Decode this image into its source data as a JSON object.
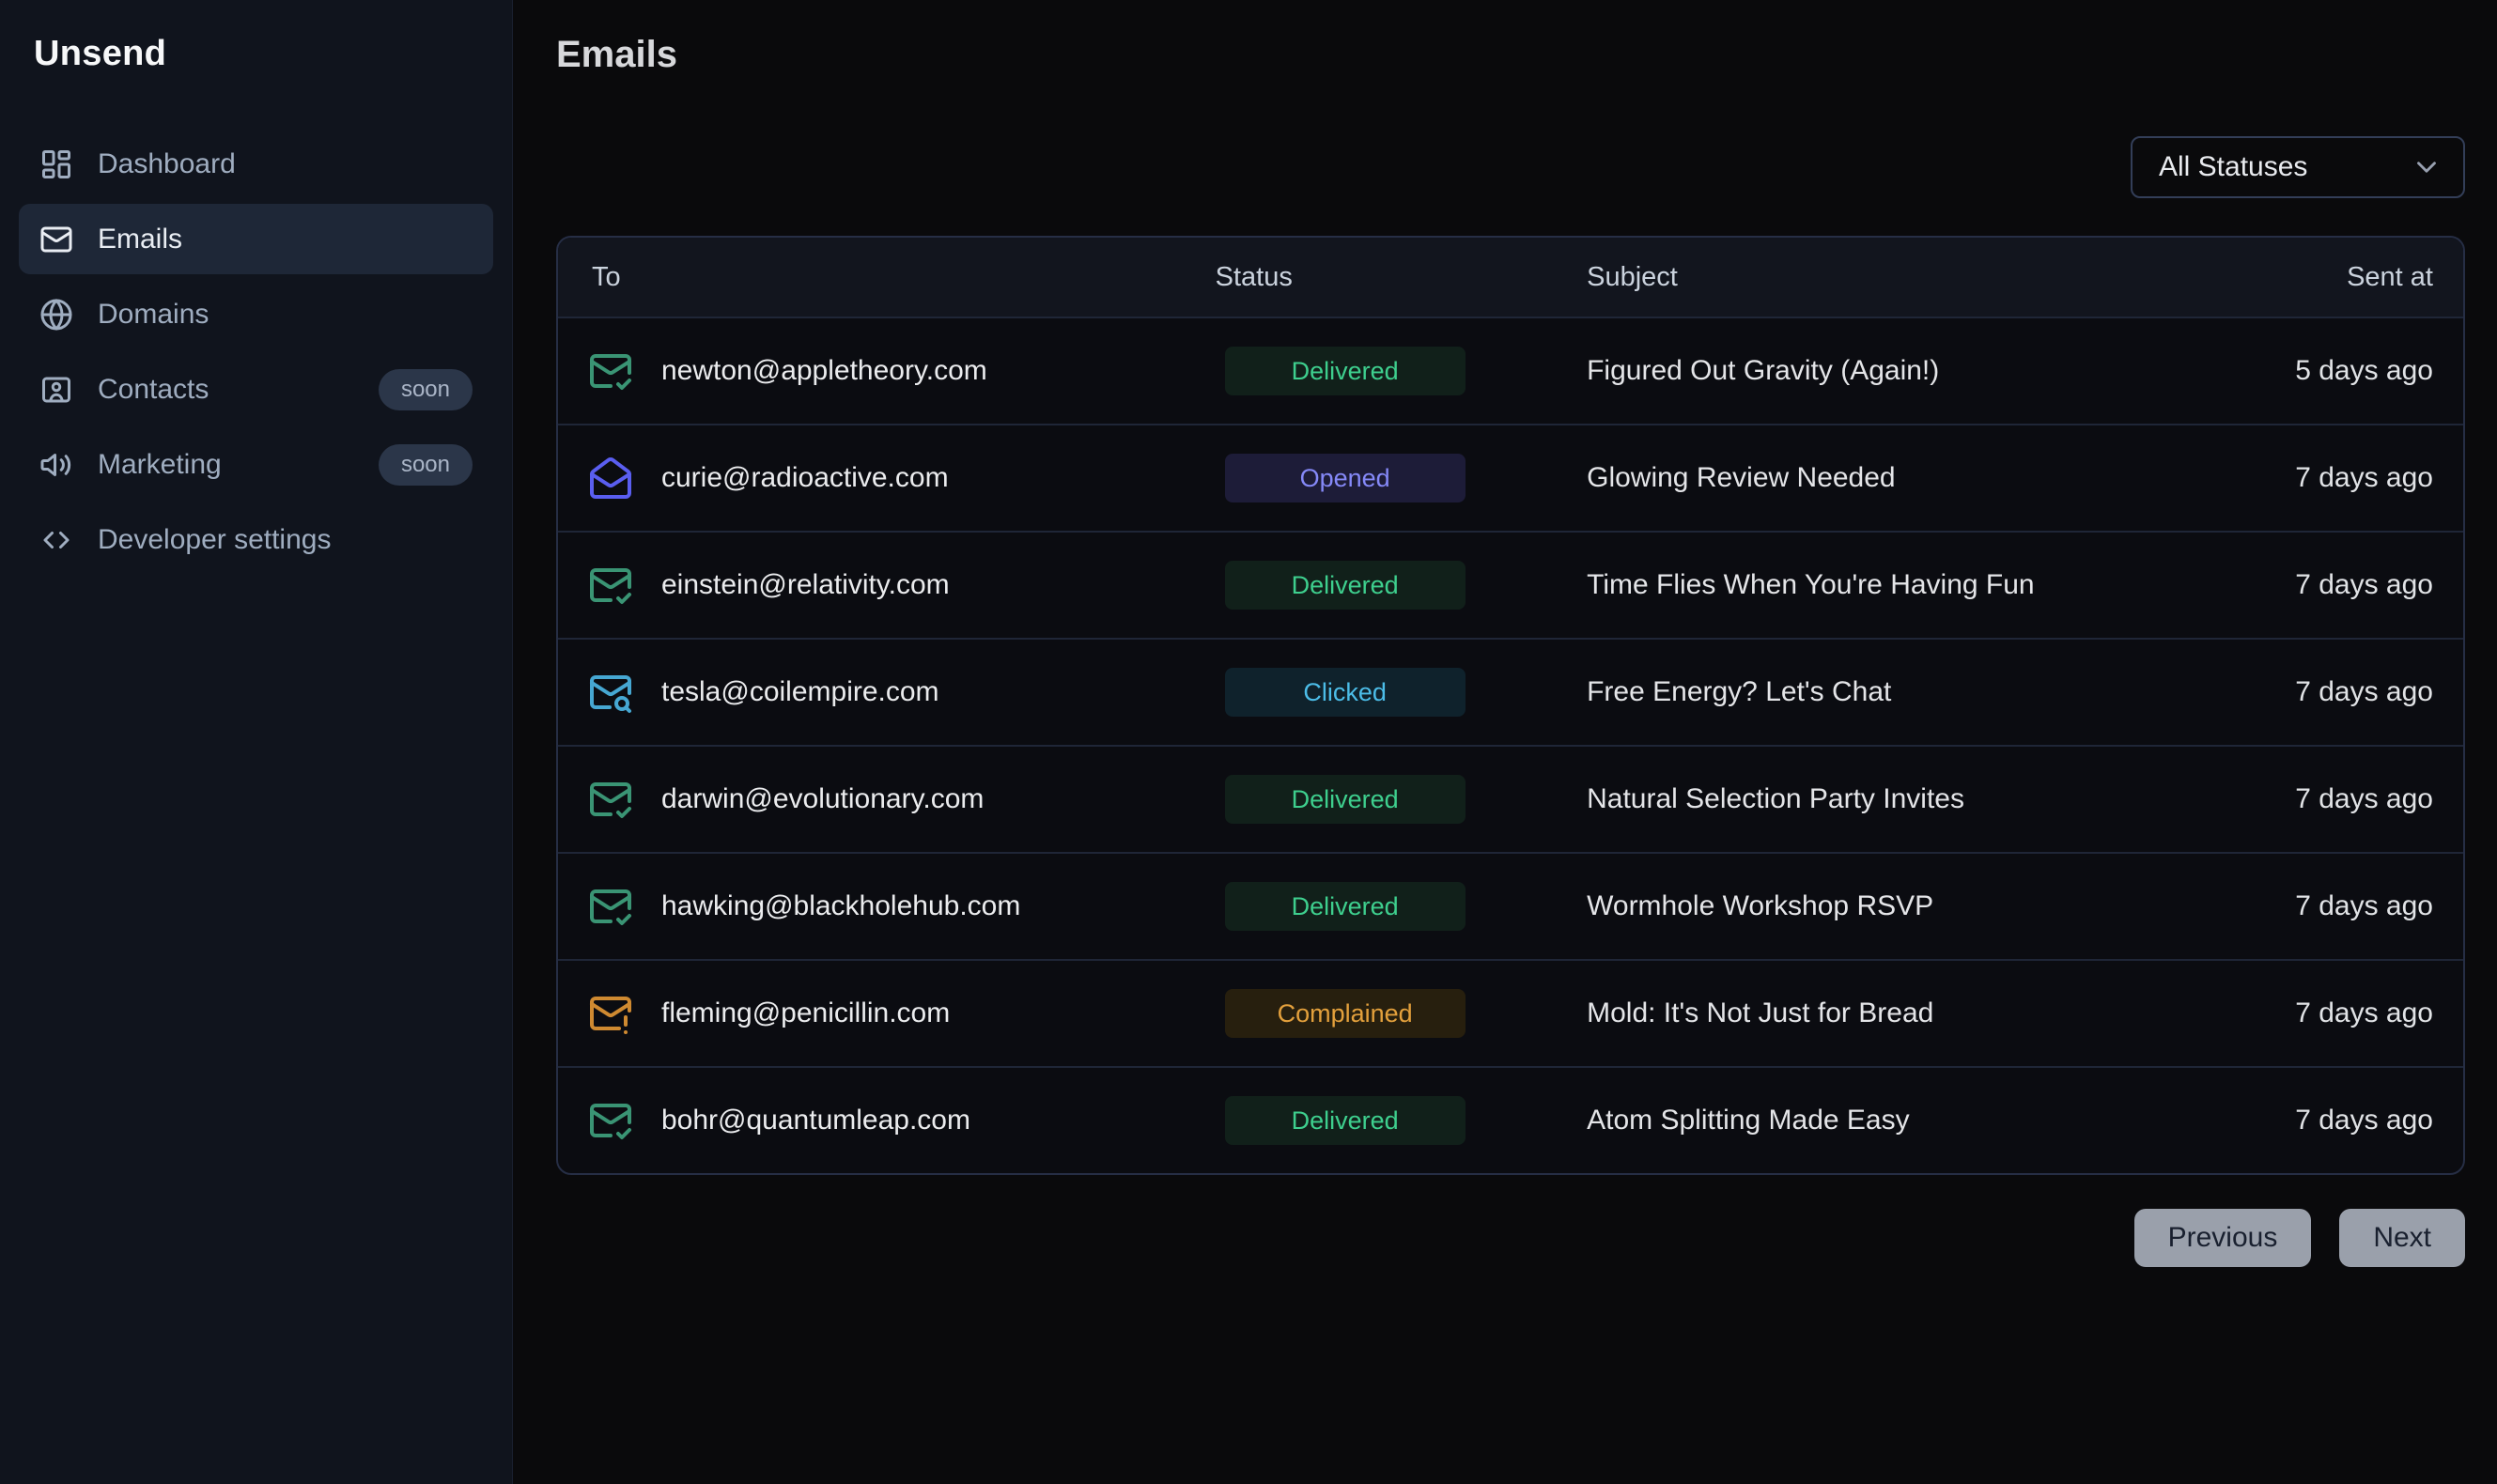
{
  "app": {
    "name": "Unsend"
  },
  "sidebar": {
    "items": [
      {
        "label": "Dashboard",
        "icon": "dashboard-icon",
        "active": false,
        "badge": null
      },
      {
        "label": "Emails",
        "icon": "mail-icon",
        "active": true,
        "badge": null
      },
      {
        "label": "Domains",
        "icon": "globe-icon",
        "active": false,
        "badge": null
      },
      {
        "label": "Contacts",
        "icon": "contacts-icon",
        "active": false,
        "badge": "soon"
      },
      {
        "label": "Marketing",
        "icon": "megaphone-icon",
        "active": false,
        "badge": "soon"
      },
      {
        "label": "Developer settings",
        "icon": "code-icon",
        "active": false,
        "badge": null
      }
    ]
  },
  "main": {
    "title": "Emails",
    "filter": {
      "selected": "All Statuses"
    },
    "table": {
      "columns": [
        "To",
        "Status",
        "Subject",
        "Sent at"
      ],
      "rows": [
        {
          "to": "newton@appletheory.com",
          "status": "Delivered",
          "subject": "Figured Out Gravity (Again!)",
          "sent_at": "5 days ago",
          "icon": "mail-check-icon"
        },
        {
          "to": "curie@radioactive.com",
          "status": "Opened",
          "subject": "Glowing Review Needed",
          "sent_at": "7 days ago",
          "icon": "mail-open-icon"
        },
        {
          "to": "einstein@relativity.com",
          "status": "Delivered",
          "subject": "Time Flies When You're Having Fun",
          "sent_at": "7 days ago",
          "icon": "mail-check-icon"
        },
        {
          "to": "tesla@coilempire.com",
          "status": "Clicked",
          "subject": "Free Energy? Let's Chat",
          "sent_at": "7 days ago",
          "icon": "mail-search-icon"
        },
        {
          "to": "darwin@evolutionary.com",
          "status": "Delivered",
          "subject": "Natural Selection Party Invites",
          "sent_at": "7 days ago",
          "icon": "mail-check-icon"
        },
        {
          "to": "hawking@blackholehub.com",
          "status": "Delivered",
          "subject": "Wormhole Workshop RSVP",
          "sent_at": "7 days ago",
          "icon": "mail-check-icon"
        },
        {
          "to": "fleming@penicillin.com",
          "status": "Complained",
          "subject": "Mold: It's Not Just for Bread",
          "sent_at": "7 days ago",
          "icon": "mail-warning-icon"
        },
        {
          "to": "bohr@quantumleap.com",
          "status": "Delivered",
          "subject": "Atom Splitting Made Easy",
          "sent_at": "7 days ago",
          "icon": "mail-check-icon"
        }
      ]
    },
    "pagination": {
      "previous": "Previous",
      "next": "Next"
    }
  },
  "colors": {
    "page_bg": "#0a0a0c",
    "sidebar_bg": "#10141d",
    "selected_item_bg": "#1e2737",
    "table_border": "#262e45",
    "status": {
      "Delivered": {
        "text": "#3ecf8e",
        "bg": "#11201a"
      },
      "Opened": {
        "text": "#8589f8",
        "bg": "#1d1c38"
      },
      "Clicked": {
        "text": "#4cbde8",
        "bg": "#0f222c"
      },
      "Complained": {
        "text": "#e3a03c",
        "bg": "#271f0e"
      }
    },
    "icons": {
      "mail-check-icon": "#3a9474",
      "mail-open-icon": "#5a5ef0",
      "mail-search-icon": "#46a7d2",
      "mail-warning-icon": "#cf8a31"
    }
  }
}
